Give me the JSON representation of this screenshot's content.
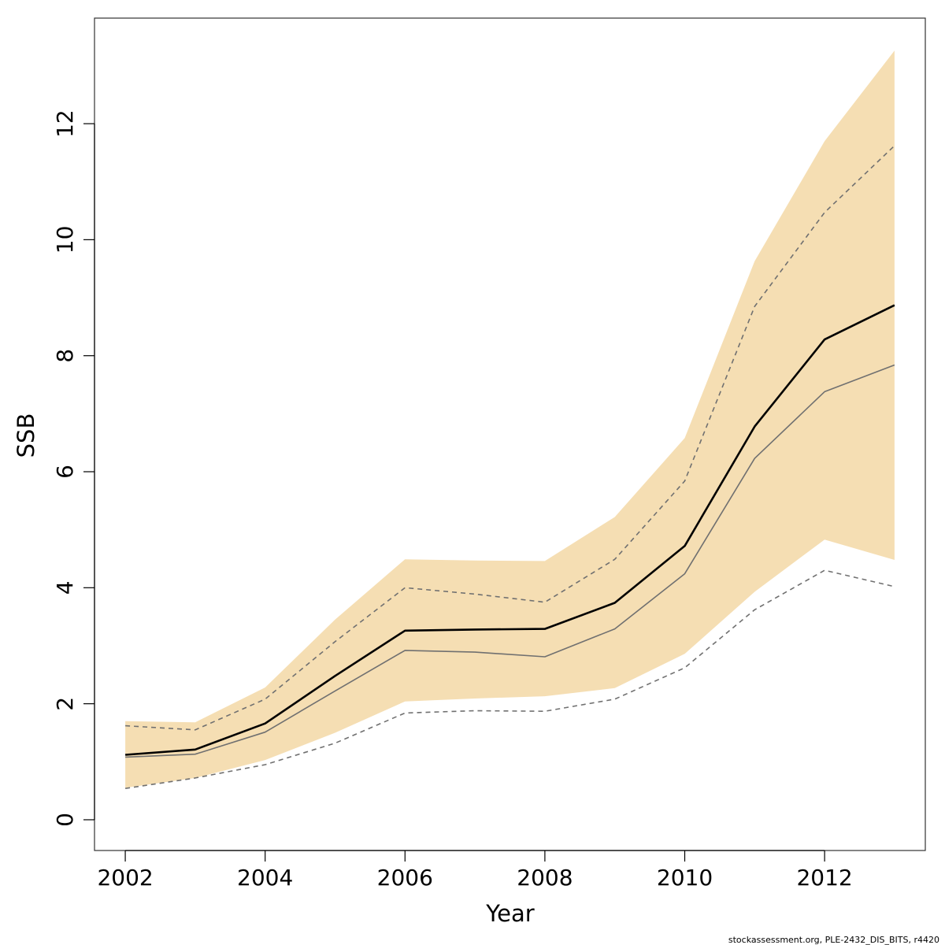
{
  "chart_data": {
    "type": "line",
    "title": "",
    "xlabel": "Year",
    "ylabel": "SSB",
    "xlim": [
      2001.56,
      2013.44
    ],
    "ylim": [
      -0.53,
      13.82
    ],
    "x_ticks": [
      2002,
      2004,
      2006,
      2008,
      2010,
      2012
    ],
    "x_tick_labels": [
      "2002",
      "2004",
      "2006",
      "2008",
      "2010",
      "2012"
    ],
    "y_ticks": [
      0,
      2,
      4,
      6,
      8,
      10,
      12
    ],
    "y_tick_labels": [
      "0",
      "2",
      "4",
      "6",
      "8",
      "10",
      "12"
    ],
    "grid": false,
    "legend": "none",
    "x": [
      2002,
      2003,
      2004,
      2005,
      2006,
      2007,
      2008,
      2009,
      2010,
      2011,
      2012,
      2013
    ],
    "band": {
      "color": "#f5deb3",
      "lower": [
        0.55,
        0.72,
        1.03,
        1.5,
        2.04,
        2.09,
        2.13,
        2.27,
        2.86,
        3.93,
        4.83,
        4.48
      ],
      "upper": [
        1.7,
        1.68,
        2.28,
        3.45,
        4.49,
        4.47,
        4.46,
        5.22,
        6.58,
        9.63,
        11.7,
        13.26
      ]
    },
    "series": [
      {
        "style": "solid-thick",
        "color": "#000000",
        "values": [
          1.12,
          1.21,
          1.66,
          2.48,
          3.26,
          3.28,
          3.29,
          3.74,
          4.72,
          6.78,
          8.28,
          8.87
        ]
      },
      {
        "style": "solid-thin",
        "color": "#707070",
        "values": [
          1.08,
          1.13,
          1.51,
          2.22,
          2.92,
          2.89,
          2.81,
          3.29,
          4.24,
          6.23,
          7.38,
          7.84
        ]
      },
      {
        "style": "dashed",
        "color": "#707070",
        "values": [
          1.62,
          1.55,
          2.08,
          3.07,
          4.0,
          3.89,
          3.75,
          4.49,
          5.84,
          8.85,
          10.47,
          11.62
        ]
      },
      {
        "style": "dashed",
        "color": "#707070",
        "values": [
          0.54,
          0.72,
          0.95,
          1.32,
          1.84,
          1.88,
          1.87,
          2.08,
          2.62,
          3.62,
          4.3,
          4.02
        ]
      }
    ]
  },
  "footer": "stockassessment.org, PLE-2432_DIS_BITS, r4420"
}
